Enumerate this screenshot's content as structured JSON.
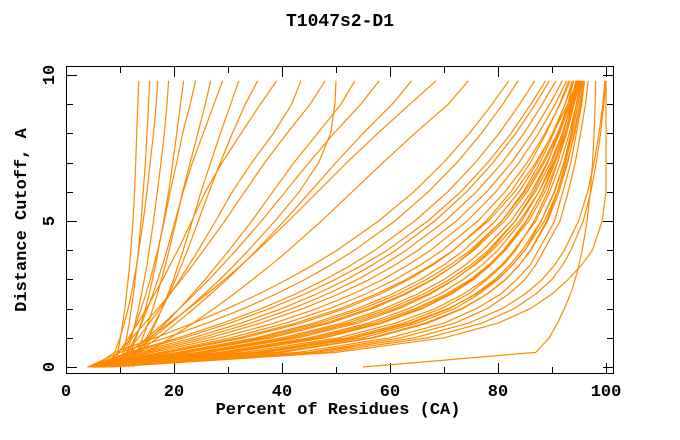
{
  "title": "T1047s2-D1",
  "axes": {
    "x_label": "Percent of Residues (CA)",
    "y_label": "Distance Cutoff, A",
    "x_major_ticks": [
      0,
      20,
      40,
      60,
      80,
      100
    ],
    "x_minor_ticks": [
      10,
      30,
      50,
      70,
      90
    ],
    "y_major_ticks": [
      0,
      5,
      10
    ],
    "y_minor_ticks": [
      1,
      2,
      3,
      4,
      6,
      7,
      8,
      9
    ]
  },
  "colors": {
    "curve": "#ff8a00",
    "frame": "#000000",
    "background": "#ffffff",
    "text": "#000000"
  },
  "chart_data": {
    "type": "line",
    "title": "T1047s2-D1",
    "xlabel": "Percent of Residues (CA)",
    "ylabel": "Distance Cutoff, A",
    "xlim": [
      0,
      101.6
    ],
    "ylim": [
      -0.2,
      10.3
    ],
    "grid": false,
    "legend": "none",
    "orientation": "x=percent of CA residues, y=distance cutoff in Angstroms; one curve per model, all curves same color",
    "cutoffs": [
      0,
      0.5,
      1,
      1.5,
      2,
      2.5,
      3,
      3.5,
      4,
      5,
      6,
      7,
      8,
      9,
      9.8
    ],
    "series": [
      [
        9,
        9.6,
        10.1,
        10.5,
        10.9,
        11.2,
        11.5,
        11.8,
        12,
        12.4,
        12.7,
        12.9,
        13.1,
        13.3,
        13.5
      ],
      [
        10,
        10.6,
        11.2,
        11.7,
        12.1,
        12.5,
        12.8,
        13.1,
        13.4,
        13.9,
        14.3,
        14.7,
        15,
        15.3,
        15.5
      ],
      [
        8,
        9,
        10,
        10.8,
        11.5,
        12.1,
        12.6,
        13.1,
        13.5,
        14.3,
        15,
        15.6,
        16.2,
        16.7,
        17
      ],
      [
        10.5,
        11.3,
        12.1,
        12.8,
        13.4,
        14,
        14.5,
        15,
        15.4,
        16.2,
        16.9,
        17.6,
        18.2,
        18.7,
        19
      ],
      [
        11,
        12,
        13,
        13.9,
        14.7,
        15.4,
        16,
        16.6,
        17.1,
        18.1,
        19,
        19.8,
        20.5,
        21.2,
        21.8
      ],
      [
        9.5,
        10.7,
        11.9,
        13,
        13.9,
        14.8,
        15.6,
        16.3,
        17,
        18.2,
        19.3,
        20.5,
        21.6,
        23,
        24
      ],
      [
        12,
        13.1,
        14.2,
        15.2,
        16.1,
        16.9,
        17.7,
        18.4,
        19.1,
        20.4,
        21.6,
        23,
        24.4,
        25.8,
        26.8
      ],
      [
        10,
        11.4,
        12.8,
        14,
        15.1,
        16.1,
        17,
        17.9,
        18.7,
        20.2,
        21.7,
        23.4,
        25.4,
        27.4,
        29
      ],
      [
        12.5,
        13.9,
        15.3,
        16.6,
        17.8,
        18.9,
        19.9,
        20.8,
        21.7,
        23.4,
        25,
        26.8,
        28.6,
        30.5,
        32
      ],
      [
        11.5,
        13.2,
        14.9,
        16.4,
        17.8,
        19.1,
        20.3,
        21.4,
        22.5,
        24.5,
        26.5,
        28.6,
        30.8,
        33.2,
        35.5
      ],
      [
        8,
        9.8,
        11.6,
        13.3,
        14.9,
        16.4,
        17.9,
        19.3,
        20.7,
        23.3,
        25.8,
        28.9,
        32.4,
        36,
        39
      ],
      [
        9,
        11.2,
        13.4,
        15.4,
        17.4,
        19.3,
        21.1,
        22.8,
        24.5,
        27.7,
        30.8,
        34.4,
        38.4,
        41.8,
        43.5
      ],
      [
        7,
        9.6,
        12.2,
        14.6,
        17,
        19.2,
        21.4,
        23.5,
        25.5,
        29.4,
        33.1,
        36.8,
        40.9,
        45.2,
        48
      ],
      [
        10,
        12.9,
        15.7,
        18.4,
        21,
        23.4,
        25.8,
        28,
        30.2,
        34.4,
        38.3,
        42.2,
        46.6,
        50.9,
        53.5
      ],
      [
        8.5,
        11.8,
        15,
        18.1,
        21,
        23.8,
        26.5,
        29,
        31.5,
        36.2,
        40.6,
        45,
        49.6,
        54.6,
        58
      ],
      [
        9.5,
        13.3,
        17,
        20.4,
        23.7,
        26.8,
        29.8,
        32.6,
        35.3,
        40.4,
        45.2,
        50,
        55,
        60.4,
        64
      ],
      [
        7.5,
        11.5,
        15.4,
        19.1,
        22.7,
        26.1,
        29.4,
        32.5,
        35.5,
        41.2,
        46.6,
        52,
        57.7,
        63.7,
        68.5
      ],
      [
        10.5,
        15,
        19.4,
        23.5,
        27.4,
        31.1,
        34.6,
        38,
        41.2,
        47.3,
        53,
        58.7,
        64.6,
        70.8,
        74.5
      ],
      [
        9,
        12.6,
        16.1,
        19.4,
        22.6,
        25.6,
        28.5,
        31.2,
        33.8,
        38.7,
        43.2,
        46.8,
        49,
        49.8,
        50
      ],
      [
        6,
        43,
        60,
        70,
        76,
        80.5,
        83.5,
        86,
        87.5,
        90.5,
        92,
        93.5,
        94.5,
        95.5,
        96
      ],
      [
        5,
        40,
        57,
        67,
        73.5,
        78,
        81.5,
        84,
        86,
        89,
        91,
        92.5,
        93.8,
        94.8,
        95.4
      ],
      [
        7,
        45,
        62,
        72,
        78,
        82,
        85,
        87,
        88.5,
        91.5,
        93,
        94.3,
        95.3,
        96.2,
        96.7
      ],
      [
        6,
        37,
        55,
        65,
        72,
        76.5,
        80,
        82.7,
        85,
        88,
        90.4,
        92.2,
        93.5,
        94.5,
        95.3
      ],
      [
        5.5,
        35,
        52,
        62.5,
        69.5,
        74.5,
        78,
        81,
        83.3,
        86.7,
        89.2,
        91,
        92.5,
        93.7,
        94.6
      ],
      [
        6.5,
        39,
        56.5,
        66.5,
        73.3,
        78,
        81.4,
        84,
        86.1,
        89.2,
        91.3,
        92.9,
        94.1,
        95.1,
        95.8
      ],
      [
        5,
        33,
        50.5,
        61,
        68.4,
        73.6,
        77.6,
        80.7,
        83,
        87,
        89.6,
        91.6,
        93.2,
        94.5,
        95.3
      ],
      [
        6,
        31,
        48,
        58.5,
        66,
        71.4,
        75.5,
        78.7,
        81.3,
        85.3,
        88.2,
        90.4,
        92.1,
        93.5,
        94.4
      ],
      [
        7,
        35,
        53,
        63.5,
        70.8,
        76,
        79.8,
        82.7,
        85,
        88.6,
        91,
        92.8,
        94.2,
        95.3,
        96
      ],
      [
        5,
        28.4,
        45,
        56,
        63.5,
        69.2,
        73.6,
        77.1,
        80,
        84.4,
        87.6,
        90,
        91.9,
        93.5,
        94.5
      ],
      [
        6,
        26.5,
        43,
        54,
        61.7,
        67.5,
        72,
        75.6,
        78.6,
        83.2,
        86.6,
        89.2,
        91.2,
        92.9,
        94
      ],
      [
        5.5,
        30,
        47,
        58,
        65.4,
        71,
        75.2,
        78.6,
        81.4,
        85.7,
        88.7,
        91,
        92.7,
        94.1,
        95.1
      ],
      [
        5,
        24.3,
        40,
        51,
        58.9,
        65.1,
        70,
        74,
        77.2,
        82.4,
        86.2,
        89.1,
        91.4,
        93.3,
        94.6
      ],
      [
        6,
        22.5,
        38,
        48.8,
        56.8,
        63,
        68,
        72,
        75.3,
        80.7,
        84.7,
        87.8,
        90.3,
        92.4,
        93.8
      ],
      [
        5,
        26,
        42,
        53,
        61,
        67.1,
        71.9,
        75.8,
        79,
        84,
        87.6,
        90.3,
        92.4,
        94.1,
        95.2
      ],
      [
        4.5,
        20.7,
        35.2,
        45.8,
        54,
        60.4,
        65.7,
        70,
        73.7,
        79.5,
        83.9,
        87.3,
        90.1,
        92.4,
        94
      ],
      [
        5.5,
        19,
        33,
        43.5,
        51.7,
        58.2,
        63.5,
        68,
        71.8,
        77.8,
        82.4,
        86,
        88.9,
        91.4,
        93.1
      ],
      [
        5,
        22,
        37,
        48,
        56.2,
        62.6,
        67.8,
        72,
        75.6,
        81.2,
        85.4,
        88.6,
        91.2,
        93.3,
        94.8
      ],
      [
        4.5,
        17.4,
        30.5,
        40.7,
        48.8,
        55.5,
        61,
        65.7,
        69.7,
        76.3,
        81.3,
        85.4,
        88.7,
        91.5,
        93.4
      ],
      [
        5,
        16,
        28.5,
        38.5,
        46.5,
        53.1,
        58.7,
        63.4,
        67.5,
        74.3,
        79.6,
        83.9,
        87.5,
        90.6,
        92.7
      ],
      [
        4,
        18.5,
        32,
        42.5,
        50.8,
        57.5,
        63,
        67.7,
        71.7,
        78.2,
        83.1,
        87,
        90.2,
        92.9,
        94.7
      ],
      [
        4,
        14,
        25,
        34.2,
        41.9,
        48.4,
        54,
        58.8,
        63,
        70.2,
        76,
        80.8,
        84.8,
        88.2,
        90.7
      ],
      [
        5,
        13,
        23.5,
        32.4,
        40,
        46.4,
        52,
        56.8,
        61.1,
        68.3,
        74.2,
        79.1,
        83.3,
        86.9,
        89.5
      ],
      [
        4,
        11.5,
        20.8,
        29,
        36.2,
        42.5,
        48,
        52.9,
        57.2,
        64.6,
        70.7,
        75.8,
        80.2,
        84,
        86.8
      ],
      [
        4.5,
        15,
        26.5,
        36,
        43.9,
        50.5,
        56.2,
        61,
        65.2,
        72.3,
        77.9,
        82.5,
        86.3,
        89.6,
        91.9
      ],
      [
        4,
        10,
        18.5,
        26.1,
        32.9,
        38.9,
        44.3,
        49.1,
        53.4,
        60.9,
        67.1,
        72.4,
        76.9,
        80.9,
        83.7
      ],
      [
        4.5,
        12,
        21.8,
        30.3,
        37.7,
        44.2,
        49.9,
        55,
        59.5,
        67,
        73.1,
        78.1,
        82.4,
        86.1,
        88.8
      ],
      [
        5,
        9,
        16.5,
        23.5,
        29.9,
        35.7,
        41,
        45.8,
        50.2,
        57.9,
        64.4,
        69.9,
        74.7,
        78.9,
        82
      ],
      [
        7,
        48,
        67,
        77,
        83,
        87,
        90,
        92,
        93.5,
        95.8,
        97.2,
        98.2,
        99,
        99.6,
        100
      ],
      [
        6.5,
        46,
        64.5,
        74.5,
        80.8,
        85,
        88.2,
        90.5,
        92.3,
        94.9,
        96.6,
        97.8,
        98.7,
        99.4,
        99.8
      ],
      [
        8,
        50,
        70,
        80,
        86,
        90,
        93,
        95.5,
        97.5,
        99.3,
        100,
        100,
        100,
        100,
        100
      ],
      [
        5,
        36,
        53.5,
        64,
        71,
        75.8,
        79.4,
        82.2,
        84.5,
        88,
        90.5,
        92.3,
        93.7,
        94.8,
        95.6
      ],
      [
        6,
        29,
        46,
        57,
        64.7,
        70.5,
        74.9,
        78.3,
        81,
        85.2,
        88.3,
        90.6,
        92.4,
        93.9,
        94.9
      ],
      [
        4.5,
        25,
        41,
        52,
        60,
        66.2,
        71.1,
        75,
        78.2,
        83.2,
        86.9,
        89.7,
        91.9,
        93.7,
        95
      ],
      [
        5.5,
        21,
        36,
        46.8,
        55,
        61.5,
        66.8,
        71.2,
        74.9,
        80.7,
        85,
        88.3,
        91,
        93.2,
        94.7
      ],
      [
        55,
        87,
        89.5,
        91,
        92.3,
        93.4,
        94.3,
        95,
        95.6,
        96.5,
        97.1,
        97.5,
        97.8,
        98,
        98.1
      ]
    ]
  }
}
